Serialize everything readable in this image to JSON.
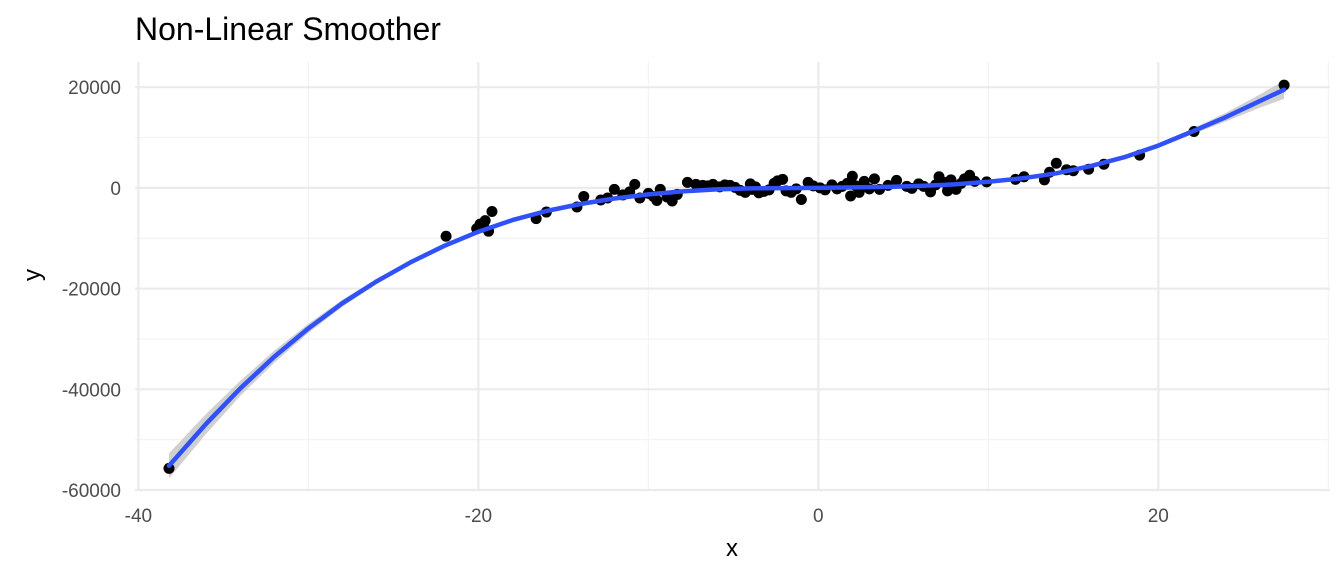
{
  "chart_data": {
    "type": "scatter",
    "title": "Non-Linear Smoother",
    "xlabel": "x",
    "ylabel": "y",
    "xlim": [
      -40.2,
      30.1
    ],
    "ylim": [
      -60000,
      25000
    ],
    "x_ticks": [
      -40,
      -20,
      0,
      20
    ],
    "x_tick_labels": [
      "-40",
      "-20",
      "0",
      "20"
    ],
    "y_ticks": [
      -60000,
      -40000,
      -20000,
      0,
      20000
    ],
    "y_tick_labels": [
      "-60000",
      "-40000",
      "-20000",
      "0",
      "20000"
    ],
    "grid": true,
    "legend": "none",
    "colors": {
      "points": "#000000",
      "smooth_line": "#3050f8",
      "confidence_band": "#c8c8c8",
      "major_grid": "#ebebeb",
      "minor_grid": "#f3f3f3"
    },
    "points": [
      [
        -38.2,
        -55700
      ],
      [
        -21.9,
        -9600
      ],
      [
        -20.1,
        -8100
      ],
      [
        -19.7,
        -7600
      ],
      [
        -19.9,
        -7200
      ],
      [
        -19.6,
        -6500
      ],
      [
        -19.4,
        -8600
      ],
      [
        -19.2,
        -4700
      ],
      [
        -16.6,
        -6100
      ],
      [
        -16.0,
        -4800
      ],
      [
        -14.2,
        -3800
      ],
      [
        -13.8,
        -1700
      ],
      [
        -12.8,
        -2400
      ],
      [
        -12.4,
        -2000
      ],
      [
        -12.0,
        -300
      ],
      [
        -11.5,
        -1400
      ],
      [
        -11.1,
        -800
      ],
      [
        -10.8,
        700
      ],
      [
        -10.5,
        -2000
      ],
      [
        -10.0,
        -1100
      ],
      [
        -9.7,
        -1700
      ],
      [
        -9.5,
        -2500
      ],
      [
        -9.3,
        -300
      ],
      [
        -8.9,
        -1800
      ],
      [
        -8.6,
        -2600
      ],
      [
        -8.3,
        -1300
      ],
      [
        -7.7,
        1100
      ],
      [
        -7.2,
        700
      ],
      [
        -6.8,
        500
      ],
      [
        -6.5,
        400
      ],
      [
        -6.2,
        700
      ],
      [
        -5.8,
        200
      ],
      [
        -5.5,
        600
      ],
      [
        -5.2,
        500
      ],
      [
        -4.9,
        100
      ],
      [
        -4.6,
        -500
      ],
      [
        -4.3,
        -900
      ],
      [
        -4.0,
        800
      ],
      [
        -3.9,
        -300
      ],
      [
        -3.7,
        200
      ],
      [
        -3.5,
        -1000
      ],
      [
        -3.2,
        -700
      ],
      [
        -2.9,
        -400
      ],
      [
        -2.6,
        900
      ],
      [
        -2.4,
        1400
      ],
      [
        -2.1,
        1700
      ],
      [
        -1.9,
        -600
      ],
      [
        -1.6,
        -900
      ],
      [
        -1.3,
        -200
      ],
      [
        -1.0,
        -2300
      ],
      [
        -0.6,
        1100
      ],
      [
        -0.3,
        400
      ],
      [
        0.1,
        0
      ],
      [
        0.4,
        -400
      ],
      [
        0.8,
        600
      ],
      [
        1.1,
        -200
      ],
      [
        1.4,
        300
      ],
      [
        1.7,
        900
      ],
      [
        1.9,
        -1600
      ],
      [
        2.0,
        2300
      ],
      [
        2.2,
        400
      ],
      [
        2.4,
        -900
      ],
      [
        2.7,
        1300
      ],
      [
        3.0,
        -200
      ],
      [
        3.3,
        1800
      ],
      [
        3.6,
        -300
      ],
      [
        4.1,
        500
      ],
      [
        4.6,
        1500
      ],
      [
        5.2,
        300
      ],
      [
        5.5,
        -100
      ],
      [
        5.9,
        800
      ],
      [
        6.2,
        300
      ],
      [
        6.6,
        -800
      ],
      [
        6.9,
        600
      ],
      [
        7.1,
        2200
      ],
      [
        7.4,
        1100
      ],
      [
        7.6,
        -600
      ],
      [
        7.8,
        1600
      ],
      [
        8.1,
        -300
      ],
      [
        8.4,
        900
      ],
      [
        8.6,
        1800
      ],
      [
        8.9,
        2500
      ],
      [
        9.2,
        1300
      ],
      [
        9.9,
        1200
      ],
      [
        11.6,
        1700
      ],
      [
        12.1,
        2200
      ],
      [
        13.3,
        1600
      ],
      [
        13.6,
        3100
      ],
      [
        14.0,
        4900
      ],
      [
        14.6,
        3600
      ],
      [
        15.0,
        3400
      ],
      [
        15.9,
        3700
      ],
      [
        16.8,
        4700
      ],
      [
        18.9,
        6500
      ],
      [
        22.1,
        11200
      ],
      [
        27.4,
        20400
      ]
    ],
    "smooth_line": [
      [
        -38.2,
        -55200
      ],
      [
        -36,
        -46800
      ],
      [
        -34,
        -39800
      ],
      [
        -32,
        -33500
      ],
      [
        -30,
        -27900
      ],
      [
        -28,
        -22900
      ],
      [
        -26,
        -18600
      ],
      [
        -24,
        -14800
      ],
      [
        -22,
        -11500
      ],
      [
        -20,
        -8700
      ],
      [
        -18,
        -6400
      ],
      [
        -16,
        -4600
      ],
      [
        -14,
        -3200
      ],
      [
        -12,
        -2100
      ],
      [
        -10,
        -1300
      ],
      [
        -8,
        -700
      ],
      [
        -6,
        -300
      ],
      [
        -4,
        -100
      ],
      [
        -2,
        -50
      ],
      [
        0,
        0
      ],
      [
        2,
        100
      ],
      [
        4,
        200
      ],
      [
        6,
        400
      ],
      [
        8,
        700
      ],
      [
        10,
        1200
      ],
      [
        12,
        1900
      ],
      [
        14,
        2900
      ],
      [
        16,
        4300
      ],
      [
        18,
        6100
      ],
      [
        20,
        8400
      ],
      [
        22,
        11200
      ],
      [
        24,
        14100
      ],
      [
        26,
        17300
      ],
      [
        27.4,
        19500
      ]
    ],
    "band_halfwidth": [
      [
        -38.2,
        2500
      ],
      [
        -34,
        1500
      ],
      [
        -30,
        900
      ],
      [
        -26,
        500
      ],
      [
        -22,
        350
      ],
      [
        -18,
        300
      ],
      [
        -12,
        250
      ],
      [
        -6,
        200
      ],
      [
        0,
        200
      ],
      [
        6,
        200
      ],
      [
        12,
        250
      ],
      [
        18,
        350
      ],
      [
        22,
        550
      ],
      [
        25,
        1000
      ],
      [
        27.4,
        1800
      ]
    ]
  }
}
